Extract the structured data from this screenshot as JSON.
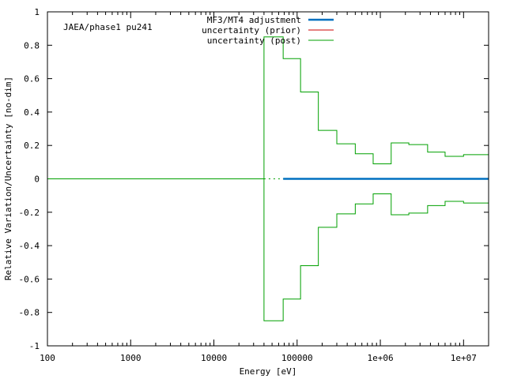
{
  "chart_data": {
    "type": "line",
    "annotation": "JAEA/phase1 pu241",
    "xlabel": "Energy [eV]",
    "ylabel": "Relative Variation/Uncertainty [no-dim]",
    "xscale": "log",
    "xlim": [
      100,
      20000000
    ],
    "ylim": [
      -1,
      1
    ],
    "x_ticks": [
      {
        "value": 100,
        "label": "100"
      },
      {
        "value": 1000,
        "label": "1000"
      },
      {
        "value": 10000,
        "label": "10000"
      },
      {
        "value": 100000,
        "label": "100000"
      },
      {
        "value": 1000000,
        "label": "1e+06"
      },
      {
        "value": 10000000,
        "label": "1e+07"
      }
    ],
    "y_ticks": [
      {
        "value": -1,
        "label": "-1"
      },
      {
        "value": -0.8,
        "label": "-0.8"
      },
      {
        "value": -0.6,
        "label": "-0.6"
      },
      {
        "value": -0.4,
        "label": "-0.4"
      },
      {
        "value": -0.2,
        "label": "-0.2"
      },
      {
        "value": 0,
        "label": "0"
      },
      {
        "value": 0.2,
        "label": "0.2"
      },
      {
        "value": 0.4,
        "label": "0.4"
      },
      {
        "value": 0.6,
        "label": "0.6"
      },
      {
        "value": 0.8,
        "label": "0.8"
      },
      {
        "value": 1,
        "label": "1"
      }
    ],
    "legend_position": "top-right",
    "series": [
      {
        "name": "MF3/MT4 adjustment",
        "color": "#0070c0",
        "style": "thick",
        "points": [
          [
            68000,
            0
          ],
          [
            20000000,
            0
          ]
        ]
      },
      {
        "name": "uncertainty (prior)",
        "color": "#cc0000",
        "style": "thin",
        "points": []
      },
      {
        "name": "uncertainty (post)",
        "color": "#00a000",
        "style": "step",
        "edges": [
          40000,
          68000,
          110000,
          180000,
          300000,
          500000,
          820000,
          1350000,
          2200000,
          3700000,
          6000000,
          10000000,
          20000000
        ],
        "values": [
          0.85,
          0.72,
          0.52,
          0.29,
          0.21,
          0.15,
          0.09,
          0.215,
          0.205,
          0.16,
          0.135,
          0.145
        ],
        "baseline_range": [
          100,
          40000
        ]
      }
    ]
  }
}
